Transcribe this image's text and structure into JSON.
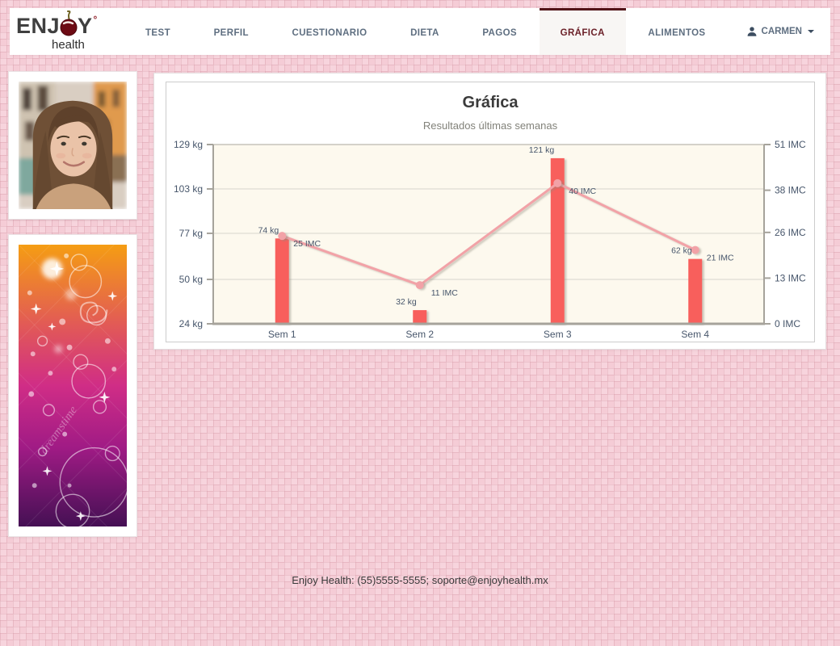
{
  "logo": {
    "pre": "ENJ",
    "post": "Y",
    "degree": "°",
    "sub": "health"
  },
  "nav": {
    "items": [
      {
        "label": "TEST"
      },
      {
        "label": "PERFIL"
      },
      {
        "label": "CUESTIONARIO"
      },
      {
        "label": "DIETA"
      },
      {
        "label": "PAGOS"
      },
      {
        "label": "GRÁFICA",
        "active": true
      },
      {
        "label": "ALIMENTOS"
      }
    ],
    "user": {
      "label": "CARMEN"
    }
  },
  "chart_data": {
    "type": "combo",
    "title": "Gráfica",
    "subtitle": "Resultados últimas semanas",
    "categories": [
      "Sem 1",
      "Sem 2",
      "Sem 3",
      "Sem 4"
    ],
    "series": [
      {
        "name": "Peso",
        "type": "bar",
        "unit": "kg",
        "axis": "left",
        "color": "#f85e5c",
        "values": [
          74,
          32,
          121,
          62
        ]
      },
      {
        "name": "IMC",
        "type": "line",
        "unit": "IMC",
        "axis": "right",
        "color": "#f2a2a7",
        "values": [
          25,
          11,
          40,
          21
        ]
      }
    ],
    "left_axis": {
      "unit": "kg",
      "min": 24,
      "max": 129,
      "ticks": [
        129,
        103,
        77,
        50,
        24
      ]
    },
    "right_axis": {
      "unit": "IMC",
      "min": 0,
      "max": 51,
      "ticks": [
        51,
        38,
        26,
        13,
        0
      ]
    },
    "grid": true,
    "legend": "none",
    "plot_bg": "#fdf9ee"
  },
  "footer": {
    "text": "Enjoy Health: (55)5555-5555; soporte@enjoyhealth.mx"
  },
  "colors": {
    "accent_maroon": "#521419",
    "active_tab_text": "#6b2028",
    "nav_text": "#5e6e80",
    "bar_red": "#f85e5c",
    "line_pink": "#f2a2a7",
    "axis_text": "#47566b",
    "plot_bg": "#fdf9ee",
    "page_pink": "#f5ccd6"
  }
}
